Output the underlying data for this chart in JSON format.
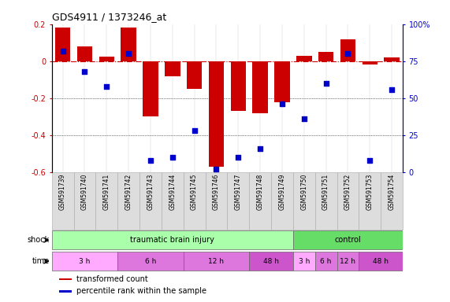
{
  "title": "GDS4911 / 1373246_at",
  "samples": [
    "GSM591739",
    "GSM591740",
    "GSM591741",
    "GSM591742",
    "GSM591743",
    "GSM591744",
    "GSM591745",
    "GSM591746",
    "GSM591747",
    "GSM591748",
    "GSM591749",
    "GSM591750",
    "GSM591751",
    "GSM591752",
    "GSM591753",
    "GSM591754"
  ],
  "bar_values": [
    0.18,
    0.08,
    0.025,
    0.18,
    -0.3,
    -0.08,
    -0.15,
    -0.57,
    -0.27,
    -0.28,
    -0.22,
    0.03,
    0.05,
    0.12,
    -0.02,
    0.02
  ],
  "dot_values": [
    82,
    68,
    58,
    80,
    8,
    10,
    28,
    2,
    10,
    16,
    46,
    36,
    60,
    80,
    8,
    56
  ],
  "ylim_left": [
    -0.6,
    0.2
  ],
  "ylim_right": [
    0,
    100
  ],
  "bar_color": "#cc0000",
  "dot_color": "#0000cc",
  "hline_color": "#cc0000",
  "dotted_lines": [
    -0.2,
    -0.4
  ],
  "left_ticks": [
    -0.6,
    -0.4,
    -0.2,
    0.0,
    0.2
  ],
  "left_labels": [
    "-0.6",
    "-0.4",
    "-0.2",
    "0",
    "0.2"
  ],
  "right_ticks": [
    0,
    25,
    50,
    75,
    100
  ],
  "right_labels": [
    "0",
    "25",
    "50",
    "75",
    "100%"
  ],
  "shock_groups": [
    {
      "label": "traumatic brain injury",
      "start": 0,
      "end": 11,
      "color": "#aaffaa"
    },
    {
      "label": "control",
      "start": 11,
      "end": 16,
      "color": "#66dd66"
    }
  ],
  "time_groups": [
    {
      "label": "3 h",
      "start": 0,
      "end": 3,
      "color": "#ffaaff"
    },
    {
      "label": "6 h",
      "start": 3,
      "end": 6,
      "color": "#dd77dd"
    },
    {
      "label": "12 h",
      "start": 6,
      "end": 9,
      "color": "#dd77dd"
    },
    {
      "label": "48 h",
      "start": 9,
      "end": 11,
      "color": "#cc55cc"
    },
    {
      "label": "3 h",
      "start": 11,
      "end": 12,
      "color": "#ffaaff"
    },
    {
      "label": "6 h",
      "start": 12,
      "end": 13,
      "color": "#dd77dd"
    },
    {
      "label": "12 h",
      "start": 13,
      "end": 14,
      "color": "#dd77dd"
    },
    {
      "label": "48 h",
      "start": 14,
      "end": 16,
      "color": "#cc55cc"
    }
  ],
  "legend_items": [
    {
      "label": "transformed count",
      "color": "#cc0000"
    },
    {
      "label": "percentile rank within the sample",
      "color": "#0000cc"
    }
  ],
  "sample_bg": "#dddddd",
  "sample_border": "#aaaaaa"
}
